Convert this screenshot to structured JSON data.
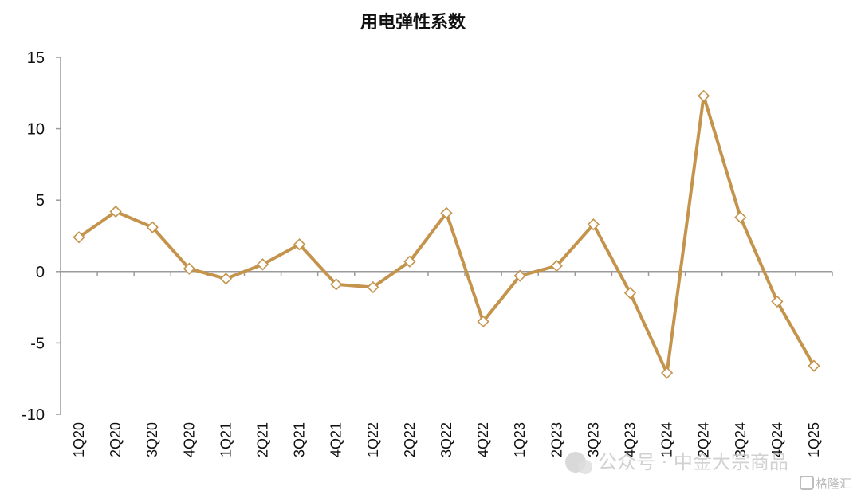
{
  "chart_data": {
    "type": "line",
    "title": "用电弹性系数",
    "categories": [
      "1Q20",
      "2Q20",
      "3Q20",
      "4Q20",
      "1Q21",
      "2Q21",
      "3Q21",
      "4Q21",
      "1Q22",
      "2Q22",
      "3Q22",
      "4Q22",
      "1Q23",
      "2Q23",
      "3Q23",
      "4Q23",
      "1Q24",
      "2Q24",
      "3Q24",
      "4Q24",
      "1Q25"
    ],
    "series": [
      {
        "values": [
          2.4,
          4.2,
          3.1,
          0.2,
          -0.5,
          0.5,
          1.9,
          -0.9,
          -1.1,
          0.7,
          4.1,
          -3.5,
          -0.3,
          0.4,
          3.3,
          -1.5,
          -7.1,
          12.3,
          3.8,
          -2.1,
          -6.6
        ]
      }
    ],
    "ylim": [
      -10,
      15
    ],
    "yticks": [
      "-10",
      "-5",
      "0",
      "5",
      "10",
      "15"
    ],
    "line_color": "#c4934c",
    "marker": "diamond",
    "grid": false
  },
  "watermark": {
    "text": "公众号 · 中金大宗商品",
    "brand": "格隆汇"
  }
}
